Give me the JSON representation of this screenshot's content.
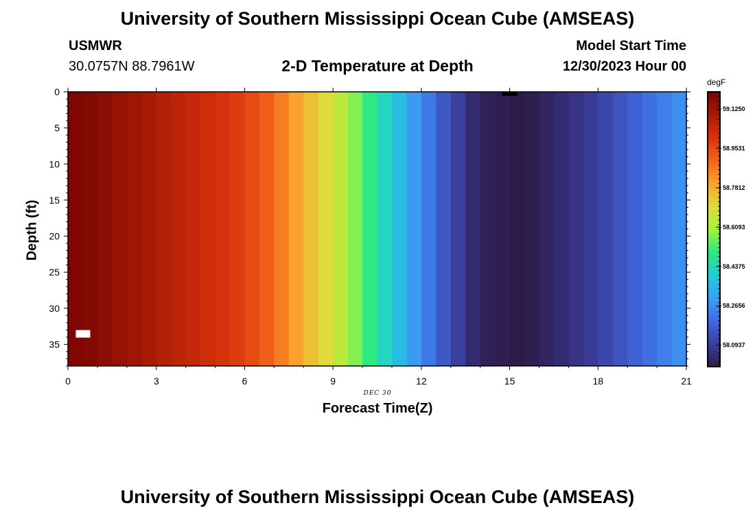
{
  "header": {
    "title": "University of Southern Mississippi Ocean Cube (AMSEAS)",
    "station_name": "USMWR",
    "coordinates": "30.0757N  88.7961W",
    "subtitle": "2-D Temperature at Depth",
    "model_start_label": "Model Start Time",
    "model_start_value": "12/30/2023 Hour 00"
  },
  "footer": {
    "title": "University of Southern Mississippi Ocean Cube (AMSEAS)"
  },
  "colors": {
    "colormap": [
      "#2e1a47",
      "#3b3f9e",
      "#4169e1",
      "#3aa0f5",
      "#1ecfd6",
      "#2ee882",
      "#a4f43a",
      "#e0da3a",
      "#f9a32e",
      "#f2641a",
      "#d8320c",
      "#a81b04",
      "#7a0403"
    ],
    "missing": "#ffffff",
    "marker": "#000000"
  },
  "chart_data": {
    "type": "heatmap",
    "title": "2-D Temperature at Depth",
    "xlabel": "Forecast Time(Z)",
    "ylabel": "Depth (ft)",
    "date_label": "DEC 30",
    "x_ticks": [
      "0",
      "3",
      "6",
      "9",
      "12",
      "15",
      "18",
      "21"
    ],
    "y_ticks": [
      "0",
      "5",
      "10",
      "15",
      "20",
      "25",
      "30",
      "35"
    ],
    "xlim": [
      0,
      21
    ],
    "ylim": [
      38,
      0
    ],
    "colorbar": {
      "unit": "degF",
      "range": [
        58.0,
        59.2
      ],
      "tick_labels": [
        "59.1250",
        "58.9531",
        "58.7812",
        "58.6093",
        "58.4375",
        "58.2656",
        "58.0937"
      ],
      "tick_values": [
        59.125,
        58.9531,
        58.7812,
        58.6093,
        58.4375,
        58.2656,
        58.0937
      ]
    },
    "x_hours": [
      0,
      0.5,
      1,
      1.5,
      2,
      2.5,
      3,
      3.5,
      4,
      4.5,
      5,
      5.5,
      6,
      6.5,
      7,
      7.5,
      8,
      8.5,
      9,
      9.5,
      10,
      10.5,
      11,
      11.5,
      12,
      12.5,
      13,
      13.5,
      14,
      14.5,
      15,
      15.5,
      16,
      16.5,
      17,
      17.5,
      18,
      18.5,
      19,
      19.5,
      20,
      20.5
    ],
    "temperature_degF": [
      59.19,
      59.18,
      59.16,
      59.14,
      59.12,
      59.1,
      59.08,
      59.06,
      59.04,
      59.02,
      59.0,
      58.98,
      58.95,
      58.91,
      58.86,
      58.8,
      58.75,
      58.7,
      58.64,
      58.57,
      58.5,
      58.43,
      58.36,
      58.29,
      58.23,
      58.16,
      58.1,
      58.05,
      58.02,
      58.01,
      58.0,
      58.01,
      58.03,
      58.05,
      58.07,
      58.09,
      58.12,
      58.15,
      58.18,
      58.21,
      58.24,
      58.27
    ],
    "depth_variation": "temperature nearly uniform with depth at each time step",
    "missing_cell": {
      "hour": 0.5,
      "depth_ft": 33.5
    },
    "surface_marker": {
      "hour": 15,
      "depth_ft": 0
    }
  }
}
